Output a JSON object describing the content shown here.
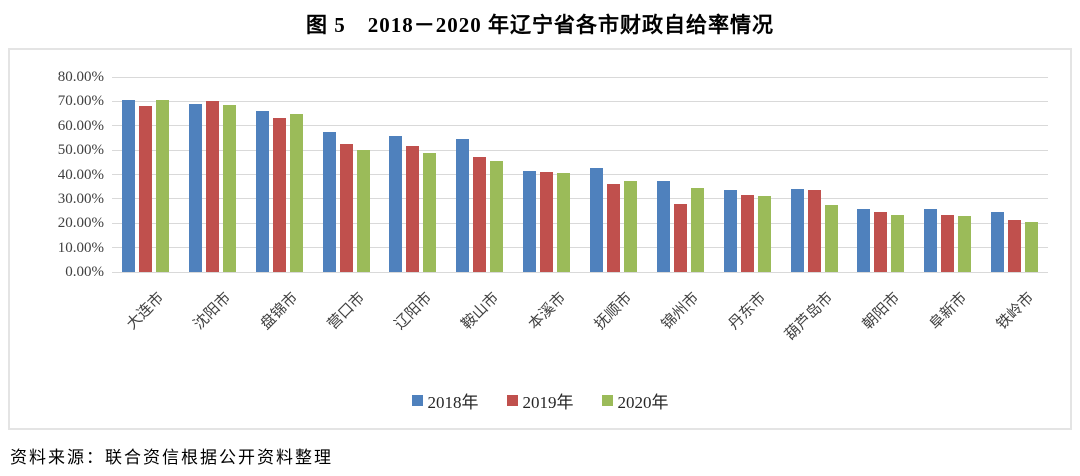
{
  "title": "图 5　2018－2020 年辽宁省各市财政自给率情况",
  "source": "资料来源：联合资信根据公开资料整理",
  "colors": {
    "series_blue": "#4f81bd",
    "series_red": "#c0504d",
    "series_green": "#9bbb59",
    "gridline": "#d9d9d9",
    "frame": "#e4e4e4",
    "axis_text": "#404040"
  },
  "chart_data": {
    "type": "bar",
    "title": "图 5　2018－2020 年辽宁省各市财政自给率情况",
    "xlabel": "",
    "ylabel": "",
    "ylim": [
      0,
      80
    ],
    "ytick_labels": [
      "0.00%",
      "10.00%",
      "20.00%",
      "30.00%",
      "40.00%",
      "50.00%",
      "60.00%",
      "70.00%",
      "80.00%"
    ],
    "grid": true,
    "legend_position": "bottom",
    "categories": [
      "大连市",
      "沈阳市",
      "盘锦市",
      "营口市",
      "辽阳市",
      "鞍山市",
      "本溪市",
      "抚顺市",
      "锦州市",
      "丹东市",
      "葫芦岛市",
      "朝阳市",
      "阜新市",
      "铁岭市"
    ],
    "series": [
      {
        "name": "2018年",
        "color": "#4f81bd",
        "values": [
          70.5,
          69.0,
          66.0,
          57.5,
          56.0,
          54.5,
          41.5,
          42.5,
          37.5,
          33.5,
          34.0,
          26.0,
          26.0,
          24.5
        ]
      },
      {
        "name": "2019年",
        "color": "#c0504d",
        "values": [
          68.0,
          70.0,
          63.0,
          52.5,
          51.5,
          47.0,
          41.0,
          36.0,
          28.0,
          31.5,
          33.5,
          24.5,
          23.5,
          21.5
        ]
      },
      {
        "name": "2020年",
        "color": "#9bbb59",
        "values": [
          70.5,
          68.5,
          65.0,
          50.0,
          49.0,
          45.5,
          40.5,
          37.5,
          34.5,
          31.0,
          27.5,
          23.5,
          23.0,
          20.5
        ]
      }
    ]
  }
}
